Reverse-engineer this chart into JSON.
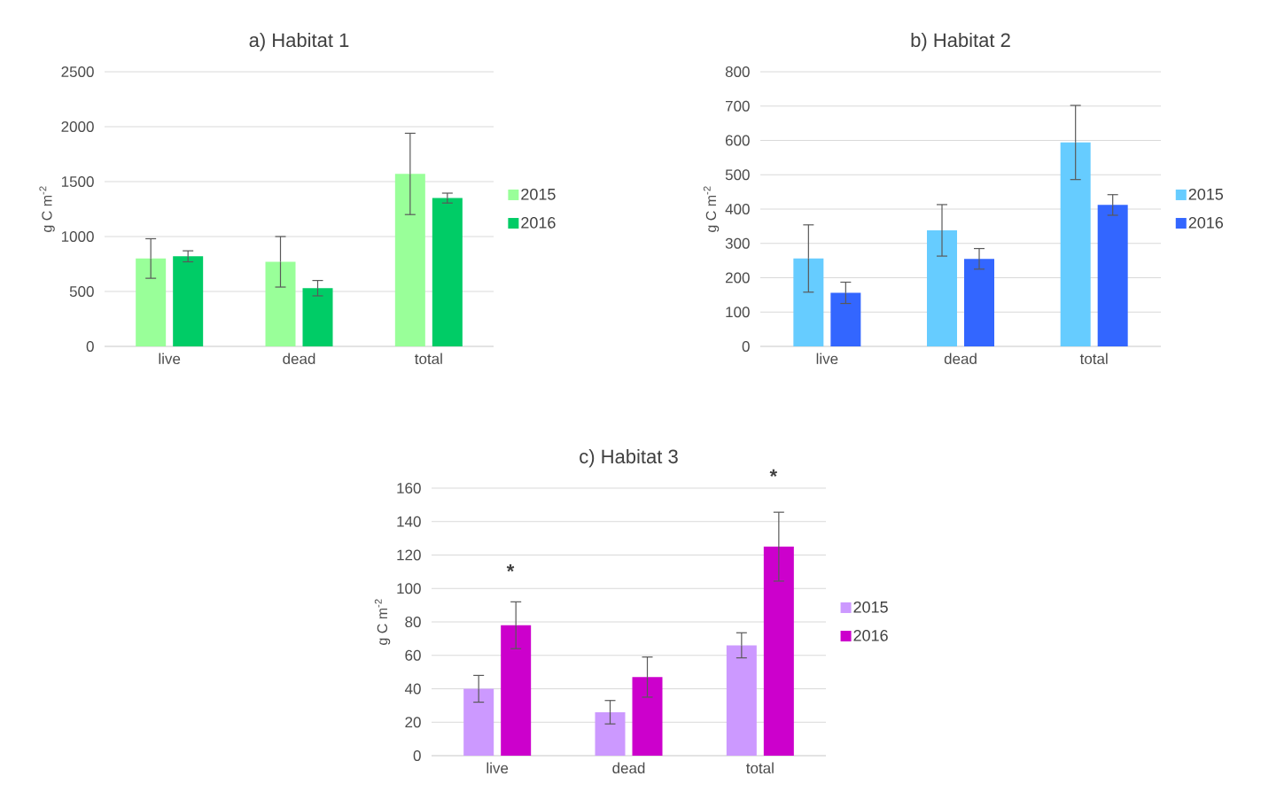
{
  "chart_data": [
    {
      "type": "bar",
      "title": "a) Habitat 1",
      "ylabel": "g C m$^{-2}$",
      "categories": [
        "live",
        "dead",
        "total"
      ],
      "ylim": [
        0,
        2500
      ],
      "yticks": [
        0,
        500,
        1000,
        1500,
        2000,
        2500
      ],
      "grid": "y",
      "legend": "right",
      "series": [
        {
          "name": "2015",
          "color": "#99ff99",
          "values": [
            800,
            770,
            1570
          ],
          "errors": [
            180,
            230,
            370
          ]
        },
        {
          "name": "2016",
          "color": "#00cc66",
          "values": [
            820,
            530,
            1350
          ],
          "errors": [
            50,
            70,
            45
          ]
        }
      ]
    },
    {
      "type": "bar",
      "title": "b) Habitat 2",
      "ylabel": "g C m$^{-2}$",
      "categories": [
        "live",
        "dead",
        "total"
      ],
      "ylim": [
        0,
        800
      ],
      "yticks": [
        0,
        100,
        200,
        300,
        400,
        500,
        600,
        700,
        800
      ],
      "grid": "y",
      "legend": "right",
      "series": [
        {
          "name": "2015",
          "color": "#66ccff",
          "values": [
            256,
            338,
            594
          ],
          "errors": [
            98,
            75,
            108
          ]
        },
        {
          "name": "2016",
          "color": "#3366ff",
          "values": [
            156,
            255,
            412
          ],
          "errors": [
            31,
            30,
            30
          ]
        }
      ]
    },
    {
      "type": "bar",
      "title": "c) Habitat 3",
      "ylabel": "g C m$^{-2}$",
      "categories": [
        "live",
        "dead",
        "total"
      ],
      "ylim": [
        0,
        160
      ],
      "yticks": [
        0,
        20,
        40,
        60,
        80,
        100,
        120,
        140,
        160
      ],
      "grid": "y",
      "legend": "right",
      "annotations": [
        "*",
        "*"
      ],
      "series": [
        {
          "name": "2015",
          "color": "#cc99ff",
          "values": [
            40,
            26,
            66
          ],
          "errors": [
            8,
            7,
            7.5
          ]
        },
        {
          "name": "2016",
          "color": "#cc00cc",
          "values": [
            78,
            47,
            125
          ],
          "errors": [
            14,
            12,
            20.6
          ]
        }
      ]
    }
  ]
}
